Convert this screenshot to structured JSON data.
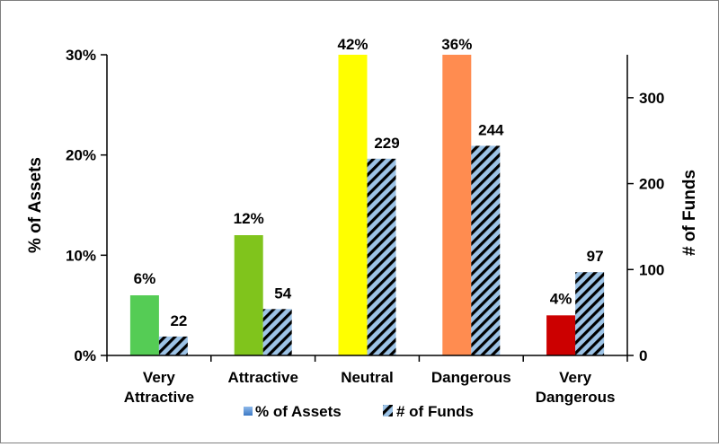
{
  "chart_data": {
    "type": "bar",
    "categories": [
      "Very Attractive",
      "Attractive",
      "Neutral",
      "Dangerous",
      "Very Dangerous"
    ],
    "category_lines": [
      [
        "Very",
        "Attractive"
      ],
      [
        "Attractive"
      ],
      [
        "Neutral"
      ],
      [
        "Dangerous"
      ],
      [
        "Very",
        "Dangerous"
      ]
    ],
    "series": [
      {
        "name": "% of Assets",
        "axis": "left",
        "values": [
          6,
          12,
          42,
          36,
          4
        ],
        "value_labels": [
          "6%",
          "12%",
          "42%",
          "36%",
          "4%"
        ],
        "colors": [
          "#55cc55",
          "#80c41c",
          "#ffff00",
          "#ff8c50",
          "#cc0000"
        ],
        "legend_color": "#5b9bd5"
      },
      {
        "name": "# of Funds",
        "axis": "right",
        "values": [
          22,
          54,
          229,
          244,
          97
        ],
        "value_labels": [
          "22",
          "54",
          "229",
          "244",
          "97"
        ],
        "pattern": "diagonal stripes",
        "colors": [
          "#9dc3e6",
          "#000000"
        ]
      }
    ],
    "ylabel_left": "% of Assets",
    "ylabel_right": "# of Funds",
    "ylim_left": [
      0,
      30
    ],
    "ylim_right": [
      0,
      350
    ],
    "yticks_left": [
      "0%",
      "10%",
      "20%",
      "30%"
    ],
    "yticks_left_values": [
      0,
      10,
      20,
      30
    ],
    "yticks_right": [
      "0",
      "100",
      "200",
      "300"
    ],
    "yticks_right_values": [
      0,
      100,
      200,
      300
    ],
    "grid": false,
    "legend_position": "bottom"
  }
}
